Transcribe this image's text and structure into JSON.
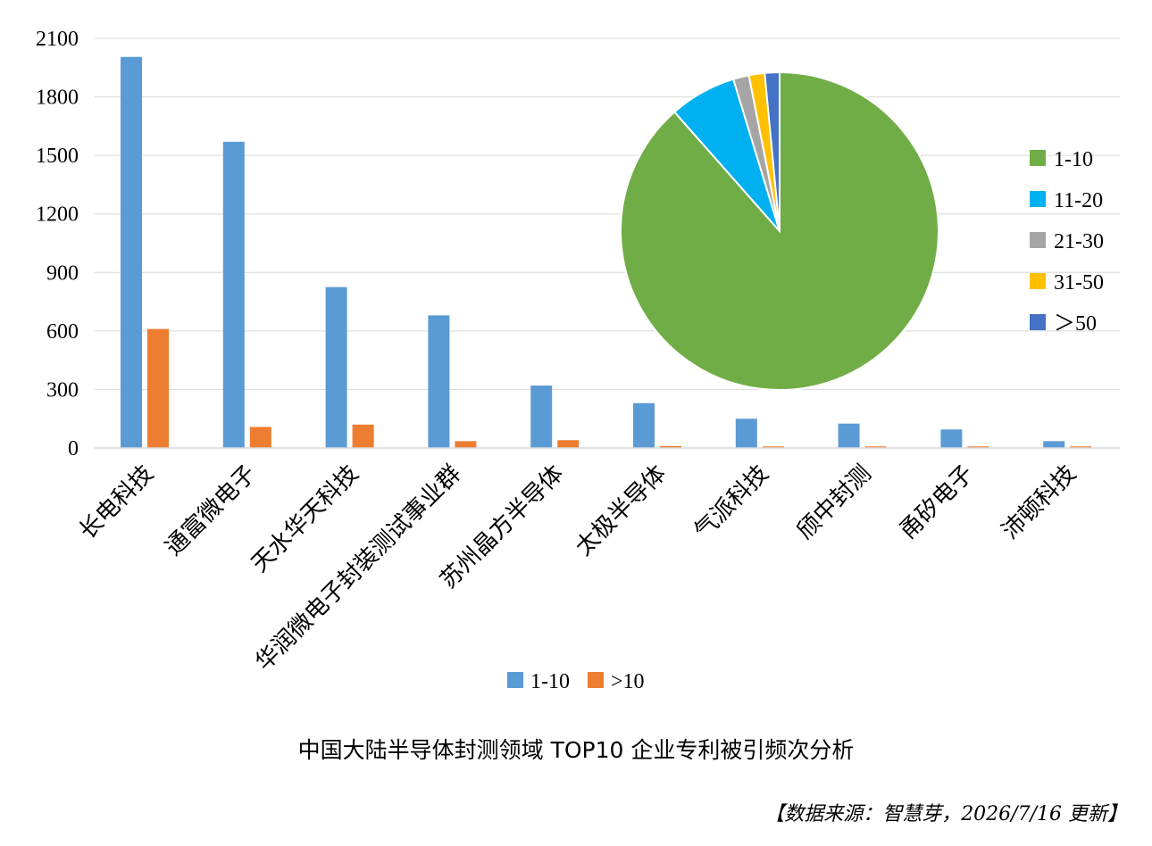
{
  "colors": {
    "series_1_10": "#5b9bd5",
    "series_gt10": "#ed7d31",
    "pie_1_10": "#70ad47",
    "pie_11_20": "#00b0f0",
    "pie_21_30": "#a5a5a5",
    "pie_31_50": "#ffc000",
    "pie_gt50": "#4472c4",
    "grid": "#d9d9d9"
  },
  "chart_data": [
    {
      "type": "bar",
      "categories": [
        "长电科技",
        "通富微电子",
        "天水华天科技",
        "华润微电子封装测试事业群",
        "苏州晶方半导体",
        "太极半导体",
        "气派科技",
        "颀中封测",
        "甬矽电子",
        "沛顿科技"
      ],
      "series": [
        {
          "name": "1-10",
          "color": "#5b9bd5",
          "values": [
            2005,
            1570,
            825,
            680,
            320,
            230,
            150,
            125,
            95,
            35
          ]
        },
        {
          "name": ">10",
          "color": "#ed7d31",
          "values": [
            610,
            108,
            120,
            35,
            40,
            10,
            8,
            8,
            8,
            8
          ]
        }
      ],
      "ylim": [
        0,
        2100
      ],
      "yticks": [
        "0",
        "300",
        "600",
        "900",
        "1200",
        "1500",
        "1800",
        "2100"
      ],
      "grid": true,
      "legend_position": "bottom"
    },
    {
      "type": "pie",
      "labels": [
        "1-10",
        "11-20",
        "21-30",
        "31-50",
        "＞50"
      ],
      "values": [
        88.5,
        6.8,
        1.6,
        1.6,
        1.5
      ],
      "colors": [
        "#70ad47",
        "#00b0f0",
        "#a5a5a5",
        "#ffc000",
        "#4472c4"
      ],
      "legend_position": "right"
    }
  ],
  "caption": "中国大陆半导体封测领域 TOP10 企业专利被引频次分析",
  "source": "【数据来源：智慧芽，2026/7/16 更新】"
}
